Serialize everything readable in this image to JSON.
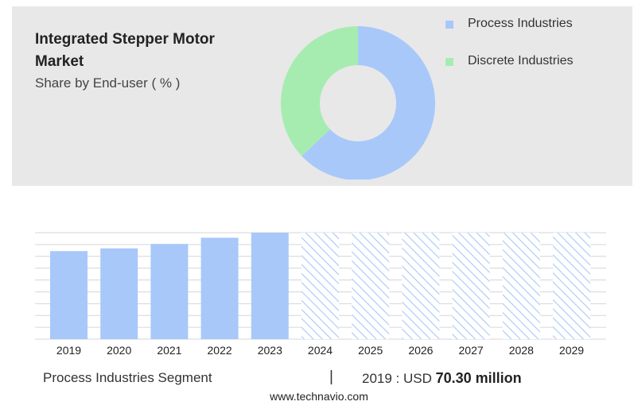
{
  "header": {
    "title": "Integrated Stepper Motor Market",
    "subtitle": "Share by End-user ( % )"
  },
  "legend": {
    "items": [
      {
        "label": "Process Industries",
        "color": "#a8c8fa"
      },
      {
        "label": "Discrete Industries",
        "color": "#a6ecb0"
      }
    ]
  },
  "footer": {
    "segment": "Process Industries Segment",
    "separator": "|",
    "year_label": "2019 : USD",
    "value": "70.30 million",
    "website": "www.technavio.com"
  },
  "chart_data": [
    {
      "type": "pie",
      "labels": [
        "Process Industries",
        "Discrete Industries"
      ],
      "values": [
        63,
        37
      ],
      "colors": [
        "#a8c8fa",
        "#a6ecb0"
      ]
    },
    {
      "type": "bar",
      "categories": [
        "2019",
        "2020",
        "2021",
        "2022",
        "2023",
        "2024",
        "2025",
        "2026",
        "2027",
        "2028",
        "2029"
      ],
      "values": [
        70.3,
        72.5,
        76.0,
        81.0,
        85.0,
        null,
        null,
        null,
        null,
        null,
        null
      ],
      "forecast_categories": [
        "2024",
        "2025",
        "2026",
        "2027",
        "2028",
        "2029"
      ],
      "ylim": [
        0,
        85
      ],
      "grid": true,
      "colors": {
        "actual": "#a8c8fa",
        "forecast_hatch": "#a8c8fa"
      }
    }
  ]
}
